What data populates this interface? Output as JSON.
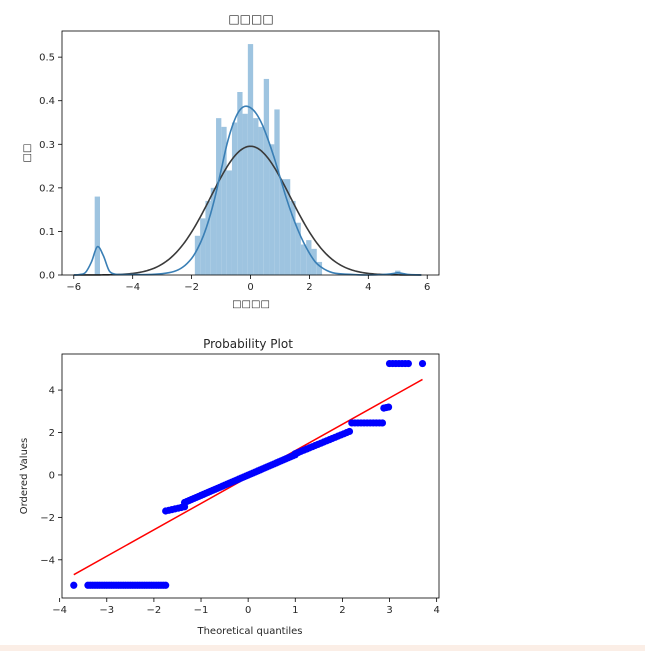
{
  "chart_data": [
    {
      "type": "bar",
      "title": "□□□□",
      "xlabel": "□□□□",
      "ylabel": "□□",
      "xlim": [
        -6.4,
        6.4
      ],
      "ylim": [
        0,
        0.56
      ],
      "xticks": [
        -6,
        -4,
        -2,
        0,
        2,
        4,
        6
      ],
      "xtick_labels": [
        "−6",
        "−4",
        "−2",
        "0",
        "2",
        "4",
        "6"
      ],
      "yticks": [
        0.0,
        0.1,
        0.2,
        0.3,
        0.4,
        0.5
      ],
      "ytick_labels": [
        "0.0",
        "0.1",
        "0.2",
        "0.3",
        "0.4",
        "0.5"
      ],
      "bar_color": "#9ec4e0",
      "kde_color": "#3a7fb5",
      "fit_color": "#3a3a3a",
      "histogram": {
        "bin_width": 0.18,
        "x": [
          -5.2,
          -1.8,
          -1.62,
          -1.44,
          -1.26,
          -1.08,
          -0.9,
          -0.72,
          -0.54,
          -0.36,
          -0.18,
          0.0,
          0.18,
          0.36,
          0.54,
          0.72,
          0.9,
          1.08,
          1.26,
          1.44,
          1.62,
          1.8,
          1.98,
          2.16,
          2.34,
          5.0
        ],
        "values": [
          0.18,
          0.09,
          0.13,
          0.17,
          0.2,
          0.36,
          0.34,
          0.24,
          0.35,
          0.42,
          0.37,
          0.53,
          0.36,
          0.34,
          0.45,
          0.3,
          0.38,
          0.22,
          0.22,
          0.17,
          0.12,
          0.07,
          0.08,
          0.06,
          0.03,
          0.01
        ]
      },
      "kde": {
        "x": [
          -6.0,
          -5.8,
          -5.6,
          -5.4,
          -5.2,
          -5.0,
          -4.8,
          -4.6,
          -4.4,
          -4.2,
          -4.0,
          -3.5,
          -3.0,
          -2.6,
          -2.3,
          -2.0,
          -1.8,
          -1.6,
          -1.4,
          -1.2,
          -1.0,
          -0.8,
          -0.6,
          -0.4,
          -0.2,
          0.0,
          0.2,
          0.4,
          0.6,
          0.8,
          1.0,
          1.2,
          1.4,
          1.6,
          1.8,
          2.0,
          2.2,
          2.4,
          2.6,
          2.8,
          3.0,
          3.5,
          4.0,
          4.5,
          4.8,
          5.0,
          5.2,
          5.4,
          5.8
        ],
        "y": [
          0.0,
          0.001,
          0.006,
          0.03,
          0.065,
          0.045,
          0.01,
          0.002,
          0.001,
          0.001,
          0.001,
          0.001,
          0.003,
          0.008,
          0.018,
          0.038,
          0.06,
          0.09,
          0.13,
          0.18,
          0.24,
          0.3,
          0.345,
          0.375,
          0.387,
          0.384,
          0.37,
          0.345,
          0.31,
          0.27,
          0.225,
          0.18,
          0.14,
          0.105,
          0.075,
          0.05,
          0.03,
          0.018,
          0.01,
          0.005,
          0.003,
          0.001,
          0.0,
          0.001,
          0.003,
          0.005,
          0.003,
          0.001,
          0.0
        ]
      },
      "normal_fit": {
        "mean": 0.0,
        "std": 1.35,
        "x_range": [
          -6.0,
          5.8
        ]
      }
    },
    {
      "type": "scatter",
      "title": "Probability Plot",
      "xlabel": "Theoretical quantiles",
      "ylabel": "Ordered Values",
      "xlim": [
        -3.95,
        4.05
      ],
      "ylim": [
        -5.8,
        5.7
      ],
      "xticks": [
        -4,
        -3,
        -2,
        -1,
        0,
        1,
        2,
        3,
        4
      ],
      "xtick_labels": [
        "−4",
        "−3",
        "−2",
        "−1",
        "0",
        "1",
        "2",
        "3",
        "4"
      ],
      "yticks": [
        -4,
        -2,
        0,
        2,
        4
      ],
      "ytick_labels": [
        "−4",
        "−2",
        "0",
        "2",
        "4"
      ],
      "point_color": "#0000ff",
      "line_color": "#ff0000",
      "fit_line": {
        "x": [
          -3.7,
          3.7
        ],
        "y": [
          -4.7,
          4.5
        ]
      },
      "segments": [
        {
          "x_start": -3.7,
          "x_end": -3.7,
          "y_start": -5.2,
          "y_end": -5.2,
          "n": 1
        },
        {
          "x_start": -3.4,
          "x_end": -1.75,
          "y_start": -5.2,
          "y_end": -5.2,
          "n": 34
        },
        {
          "x_start": -1.75,
          "x_end": -1.35,
          "y_start": -1.7,
          "y_end": -1.5,
          "n": 7
        },
        {
          "x_start": -1.35,
          "x_end": 1.0,
          "y_start": -1.3,
          "y_end": 0.95,
          "n": 48
        },
        {
          "x_start": 1.0,
          "x_end": 2.15,
          "y_start": 1.0,
          "y_end": 2.05,
          "n": 20
        },
        {
          "x_start": 2.2,
          "x_end": 2.85,
          "y_start": 2.45,
          "y_end": 2.45,
          "n": 11
        },
        {
          "x_start": 2.88,
          "x_end": 2.98,
          "y_start": 3.15,
          "y_end": 3.2,
          "n": 3
        },
        {
          "x_start": 3.0,
          "x_end": 3.4,
          "y_start": 5.25,
          "y_end": 5.25,
          "n": 7
        },
        {
          "x_start": 3.7,
          "x_end": 3.7,
          "y_start": 5.25,
          "y_end": 5.25,
          "n": 1
        }
      ]
    }
  ]
}
